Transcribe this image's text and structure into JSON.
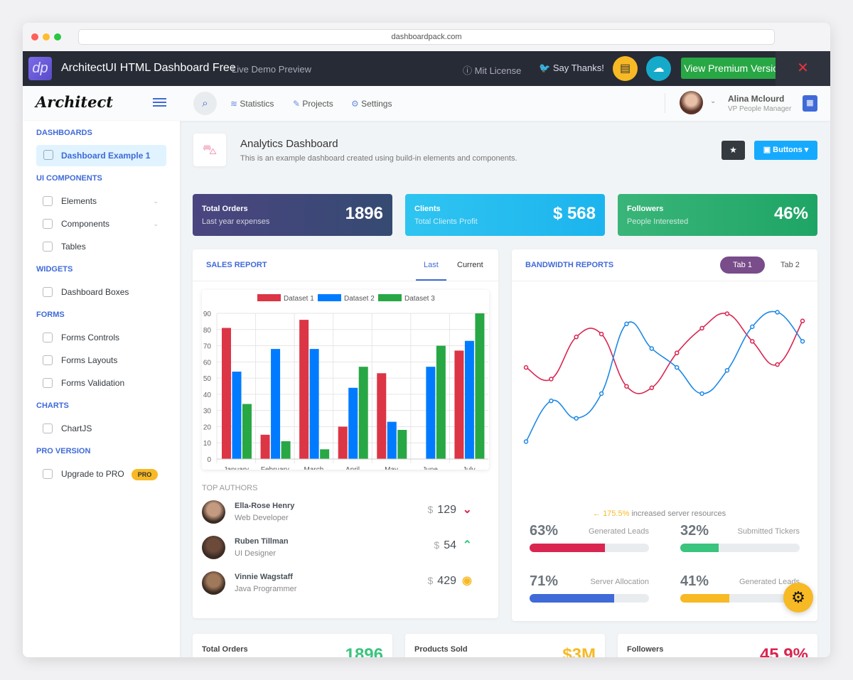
{
  "browser": {
    "url": "dashboardpack.com"
  },
  "promo": {
    "logo": "dp",
    "title": "ArchitectUI HTML Dashboard Free",
    "subtitle": "Live Demo Preview",
    "license": "Mit License",
    "thanks": "Say Thanks!",
    "premium": "View Premium Version",
    "close": "✕"
  },
  "header": {
    "logo": "Architect",
    "nav": [
      "Statistics",
      "Projects",
      "Settings"
    ],
    "user_name": "Alina Mclourd",
    "user_role": "VP People Manager"
  },
  "sidebar": [
    {
      "type": "h",
      "label": "DASHBOARDS"
    },
    {
      "type": "i",
      "label": "Dashboard Example 1",
      "active": true,
      "icon": "rocket-icon"
    },
    {
      "type": "h",
      "label": "UI COMPONENTS"
    },
    {
      "type": "i",
      "label": "Elements",
      "chevron": true,
      "icon": "diamond-icon"
    },
    {
      "type": "i",
      "label": "Components",
      "chevron": true,
      "icon": "car-icon"
    },
    {
      "type": "i",
      "label": "Tables",
      "icon": "table-icon"
    },
    {
      "type": "h",
      "label": "WIDGETS"
    },
    {
      "type": "i",
      "label": "Dashboard Boxes",
      "icon": "display-icon"
    },
    {
      "type": "h",
      "label": "FORMS"
    },
    {
      "type": "i",
      "label": "Forms Controls",
      "icon": "mouse-icon"
    },
    {
      "type": "i",
      "label": "Forms Layouts",
      "icon": "eyedropper-icon"
    },
    {
      "type": "i",
      "label": "Forms Validation",
      "icon": "phone-icon"
    },
    {
      "type": "h",
      "label": "CHARTS"
    },
    {
      "type": "i",
      "label": "ChartJS",
      "icon": "graph-icon"
    },
    {
      "type": "h",
      "label": "PRO VERSION"
    },
    {
      "type": "i",
      "label": "Upgrade to PRO",
      "badge": "PRO",
      "icon": "star-icon"
    }
  ],
  "page": {
    "title": "Analytics Dashboard",
    "subtitle": "This is an example dashboard created using build-in elements and components.",
    "buttons_label": "Buttons"
  },
  "widgets": [
    {
      "title": "Total Orders",
      "sub": "Last year expenses",
      "value": "1896"
    },
    {
      "title": "Clients",
      "sub": "Total Clients Profit",
      "value": "$ 568"
    },
    {
      "title": "Followers",
      "sub": "People Interested",
      "value": "46%"
    }
  ],
  "sales": {
    "title": "SALES REPORT",
    "tabs": [
      "Last",
      "Current"
    ],
    "authors_title": "TOP AUTHORS",
    "authors": [
      {
        "name": "Ella-Rose Henry",
        "role": "Web Developer",
        "currency": "$",
        "amount": "129",
        "trend": "down"
      },
      {
        "name": "Ruben Tillman",
        "role": "UI Designer",
        "currency": "$",
        "amount": "54",
        "trend": "up"
      },
      {
        "name": "Vinnie Wagstaff",
        "role": "Java Programmer",
        "currency": "$",
        "amount": "429",
        "trend": "neutral"
      }
    ]
  },
  "bandwidth": {
    "title": "BANDWIDTH REPORTS",
    "tabs": [
      "Tab 1",
      "Tab 2"
    ],
    "trend_value": "175.5%",
    "trend_text": "increased server resources",
    "progress": [
      {
        "value": 63,
        "label_value": "63%",
        "label": "Generated Leads",
        "color": "#d92550"
      },
      {
        "value": 32,
        "label_value": "32%",
        "label": "Submitted Tickers",
        "color": "#3ac47d"
      },
      {
        "value": 71,
        "label_value": "71%",
        "label": "Server Allocation",
        "color": "#3f6ad8"
      },
      {
        "value": 41,
        "label_value": "41%",
        "label": "Generated Leads",
        "color": "#f7b924"
      }
    ]
  },
  "bottom": [
    {
      "title": "Total Orders",
      "value": "1896",
      "color": "#3ac47d"
    },
    {
      "title": "Products Sold",
      "value": "$3M",
      "color": "#f7b924"
    },
    {
      "title": "Followers",
      "value": "45,9%",
      "color": "#d92550"
    }
  ],
  "chart_data": [
    {
      "type": "bar",
      "categories": [
        "January",
        "February",
        "March",
        "April",
        "May",
        "June",
        "July"
      ],
      "series": [
        {
          "name": "Dataset 1",
          "color": "#dc3545",
          "values": [
            81,
            15,
            86,
            20,
            53,
            0,
            67
          ]
        },
        {
          "name": "Dataset 2",
          "color": "#007bff",
          "values": [
            54,
            68,
            68,
            44,
            23,
            57,
            73
          ]
        },
        {
          "name": "Dataset 3",
          "color": "#28a745",
          "values": [
            34,
            11,
            6,
            57,
            18,
            70,
            90
          ]
        }
      ],
      "ylim": [
        0,
        90
      ],
      "yticks": [
        0,
        10,
        20,
        30,
        40,
        50,
        60,
        70,
        80,
        90
      ],
      "grid": true,
      "legend": "top"
    },
    {
      "type": "line",
      "smooth": true,
      "axes": false,
      "series": [
        {
          "color": "#d92550",
          "values": [
            63,
            55,
            84,
            86,
            50,
            49,
            73,
            90,
            100,
            81,
            65,
            95
          ]
        },
        {
          "color": "#1e88e5",
          "values": [
            12,
            40,
            28,
            45,
            93,
            76,
            63,
            45,
            61,
            91,
            101,
            81
          ]
        }
      ],
      "ylim": [
        0,
        110
      ]
    }
  ]
}
